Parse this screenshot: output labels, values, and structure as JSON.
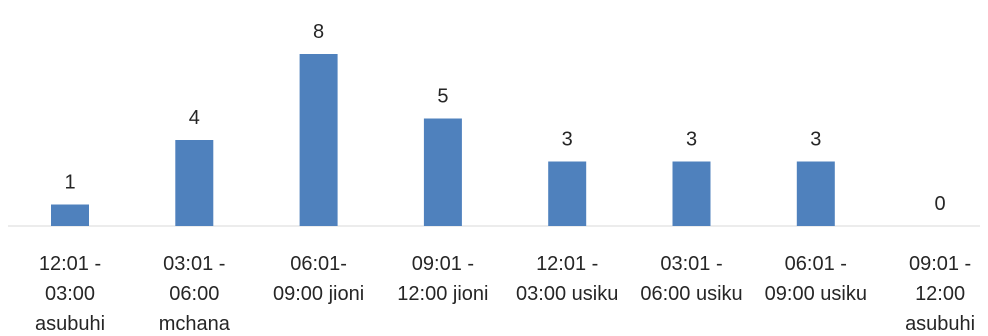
{
  "chart_data": {
    "type": "bar",
    "categories": [
      [
        "12:01 -",
        "03:00",
        "asubuhi"
      ],
      [
        "03:01 -",
        "06:00",
        "mchana"
      ],
      [
        "06:01-",
        "09:00 jioni"
      ],
      [
        "09:01 -",
        "12:00 jioni"
      ],
      [
        "12:01 -",
        "03:00 usiku"
      ],
      [
        "03:01 -",
        "06:00 usiku"
      ],
      [
        "06:01 -",
        "09:00 usiku"
      ],
      [
        "09:01 -",
        "12:00",
        "asubuhi"
      ]
    ],
    "values": [
      1,
      4,
      8,
      5,
      3,
      3,
      3,
      0
    ],
    "title": "",
    "xlabel": "",
    "ylabel": "",
    "ylim": [
      0,
      8
    ],
    "grid": false,
    "legend": "none",
    "colors": {
      "bar": "#4f81bd",
      "text": "#262626",
      "axis": "#d9d9d9"
    }
  }
}
